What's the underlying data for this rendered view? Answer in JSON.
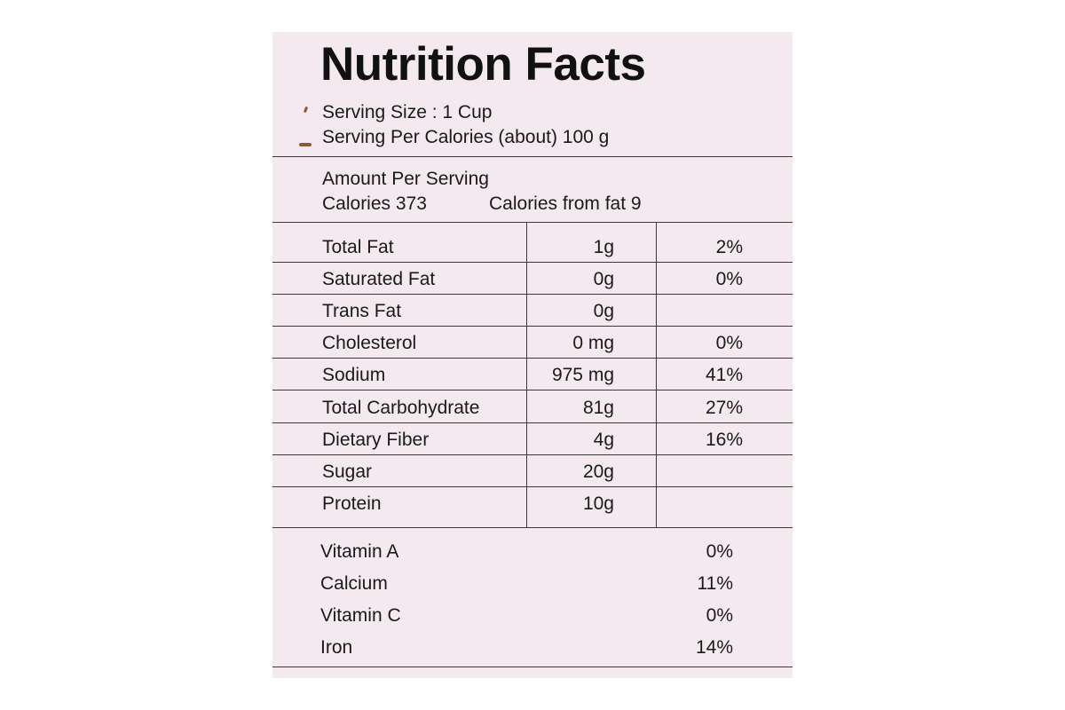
{
  "title": "Nutrition Facts",
  "serving_size": "Serving Size : 1 Cup",
  "serving_per": "Serving Per Calories (about) 100 g",
  "amount_per_serving": "Amount Per Serving",
  "calories": "Calories 373",
  "calories_from_fat": "Calories from fat 9",
  "nutrients": [
    {
      "name": "Total Fat",
      "amount": "1g",
      "dv": "2%"
    },
    {
      "name": "Saturated Fat",
      "amount": "0g",
      "dv": "0%"
    },
    {
      "name": "Trans Fat",
      "amount": "0g",
      "dv": ""
    },
    {
      "name": "Cholesterol",
      "amount": "0 mg",
      "dv": "0%"
    },
    {
      "name": "Sodium",
      "amount": "975 mg",
      "dv": "41%"
    },
    {
      "name": "Total Carbohydrate",
      "amount": "81g",
      "dv": "27%"
    },
    {
      "name": "Dietary Fiber",
      "amount": "4g",
      "dv": "16%"
    },
    {
      "name": "Sugar",
      "amount": "20g",
      "dv": ""
    },
    {
      "name": "Protein",
      "amount": "10g",
      "dv": ""
    }
  ],
  "vitamins": [
    {
      "name": "Vitamin A",
      "dv": "0%"
    },
    {
      "name": "Calcium",
      "dv": "11%"
    },
    {
      "name": "Vitamin C",
      "dv": "0%"
    },
    {
      "name": "Iron",
      "dv": "14%"
    }
  ],
  "colors": {
    "label_background": "#f3e9ef",
    "ink": "#1a1a1a"
  }
}
